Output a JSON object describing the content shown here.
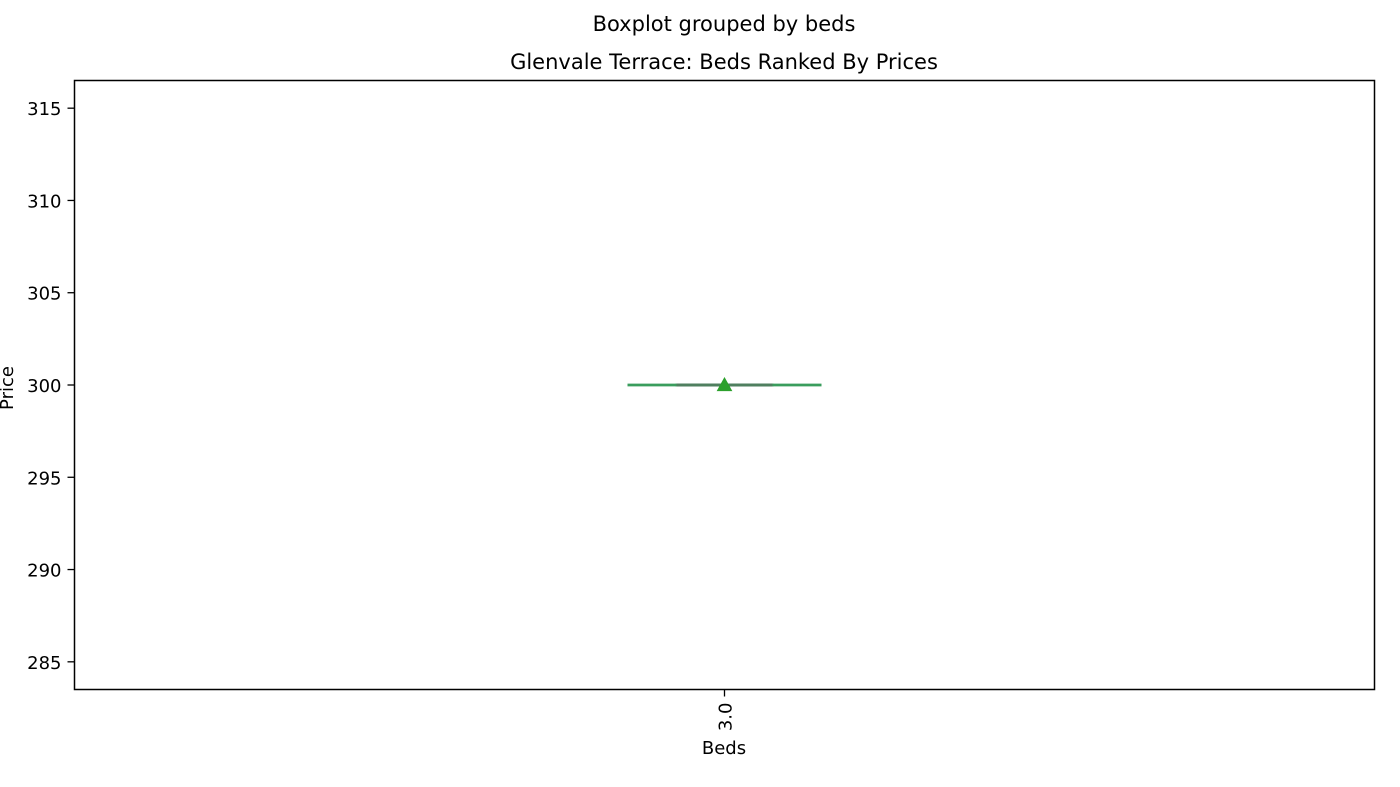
{
  "chart_data": {
    "type": "box",
    "suptitle": "Boxplot grouped by beds",
    "title": "Glenvale Terrace: Beds Ranked By Prices",
    "xlabel": "Beds",
    "ylabel": "Price",
    "categories": [
      "3.0"
    ],
    "boxes": [
      {
        "category": "3.0",
        "min": 300,
        "q1": 300,
        "median": 300,
        "q3": 300,
        "max": 300,
        "mean": 300
      }
    ],
    "ylim": [
      283.5,
      316.5
    ],
    "yticks": [
      285,
      290,
      295,
      300,
      305,
      310,
      315
    ],
    "grid": false,
    "colors": {
      "box": "#3a9d5d",
      "median": "#4f7f5f",
      "mean": "#2ca02c"
    }
  }
}
